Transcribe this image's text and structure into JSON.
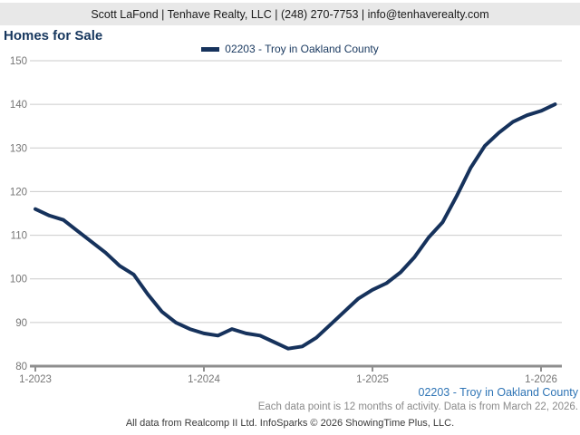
{
  "header": {
    "contact_line": "Scott LaFond | Tenhave Realty, LLC | (248) 270-7753 | info@tenhaverealty.com"
  },
  "title": "Homes for Sale",
  "legend": {
    "label": "02203 - Troy in Oakland County"
  },
  "footer": {
    "series_label": "02203 - Troy in Oakland County",
    "note": "Each data point is 12 months of activity. Data is from March 22, 2026.",
    "attribution": "All data from Realcomp II Ltd. InfoSparks © 2026 ShowingTime Plus, LLC."
  },
  "colors": {
    "line": "#16325c",
    "title_navy": "#17375e",
    "footer_blue": "#2e74b5",
    "gridline": "#cbcbcb",
    "axis": "#8e8e8e",
    "header_bg": "#e8e8e8",
    "tick_text": "#767676"
  },
  "chart_data": {
    "type": "line",
    "title": "Homes for Sale",
    "x": [
      "1-2023",
      "2-2023",
      "3-2023",
      "4-2023",
      "5-2023",
      "6-2023",
      "7-2023",
      "8-2023",
      "9-2023",
      "10-2023",
      "11-2023",
      "12-2023",
      "1-2024",
      "2-2024",
      "3-2024",
      "4-2024",
      "5-2024",
      "6-2024",
      "7-2024",
      "8-2024",
      "9-2024",
      "10-2024",
      "11-2024",
      "12-2024",
      "1-2025",
      "2-2025",
      "3-2025",
      "4-2025",
      "5-2025",
      "6-2025",
      "7-2025",
      "8-2025",
      "9-2025",
      "10-2025",
      "11-2025",
      "12-2025",
      "1-2026",
      "2-2026"
    ],
    "series": [
      {
        "name": "02203 - Troy in Oakland County",
        "values": [
          116,
          114.5,
          113.5,
          111,
          108.5,
          106,
          103,
          101,
          96.5,
          92.5,
          90,
          88.5,
          87.5,
          87,
          88.5,
          87.5,
          87,
          85.5,
          84,
          84.5,
          86.5,
          89.5,
          92.5,
          95.5,
          97.5,
          99,
          101.5,
          105,
          109.5,
          113,
          119,
          125.5,
          130.5,
          133.5,
          136,
          137.5,
          138.5,
          140
        ]
      }
    ],
    "xlabel": "",
    "ylabel": "",
    "ylim": [
      80,
      150
    ],
    "y_ticks": [
      80,
      90,
      100,
      110,
      120,
      130,
      140,
      150
    ],
    "x_tick_labels": [
      "1-2023",
      "1-2024",
      "1-2025",
      "1-2026"
    ],
    "x_tick_indices": [
      0,
      12,
      24,
      36
    ],
    "grid": true,
    "legend_position": "top-center"
  }
}
